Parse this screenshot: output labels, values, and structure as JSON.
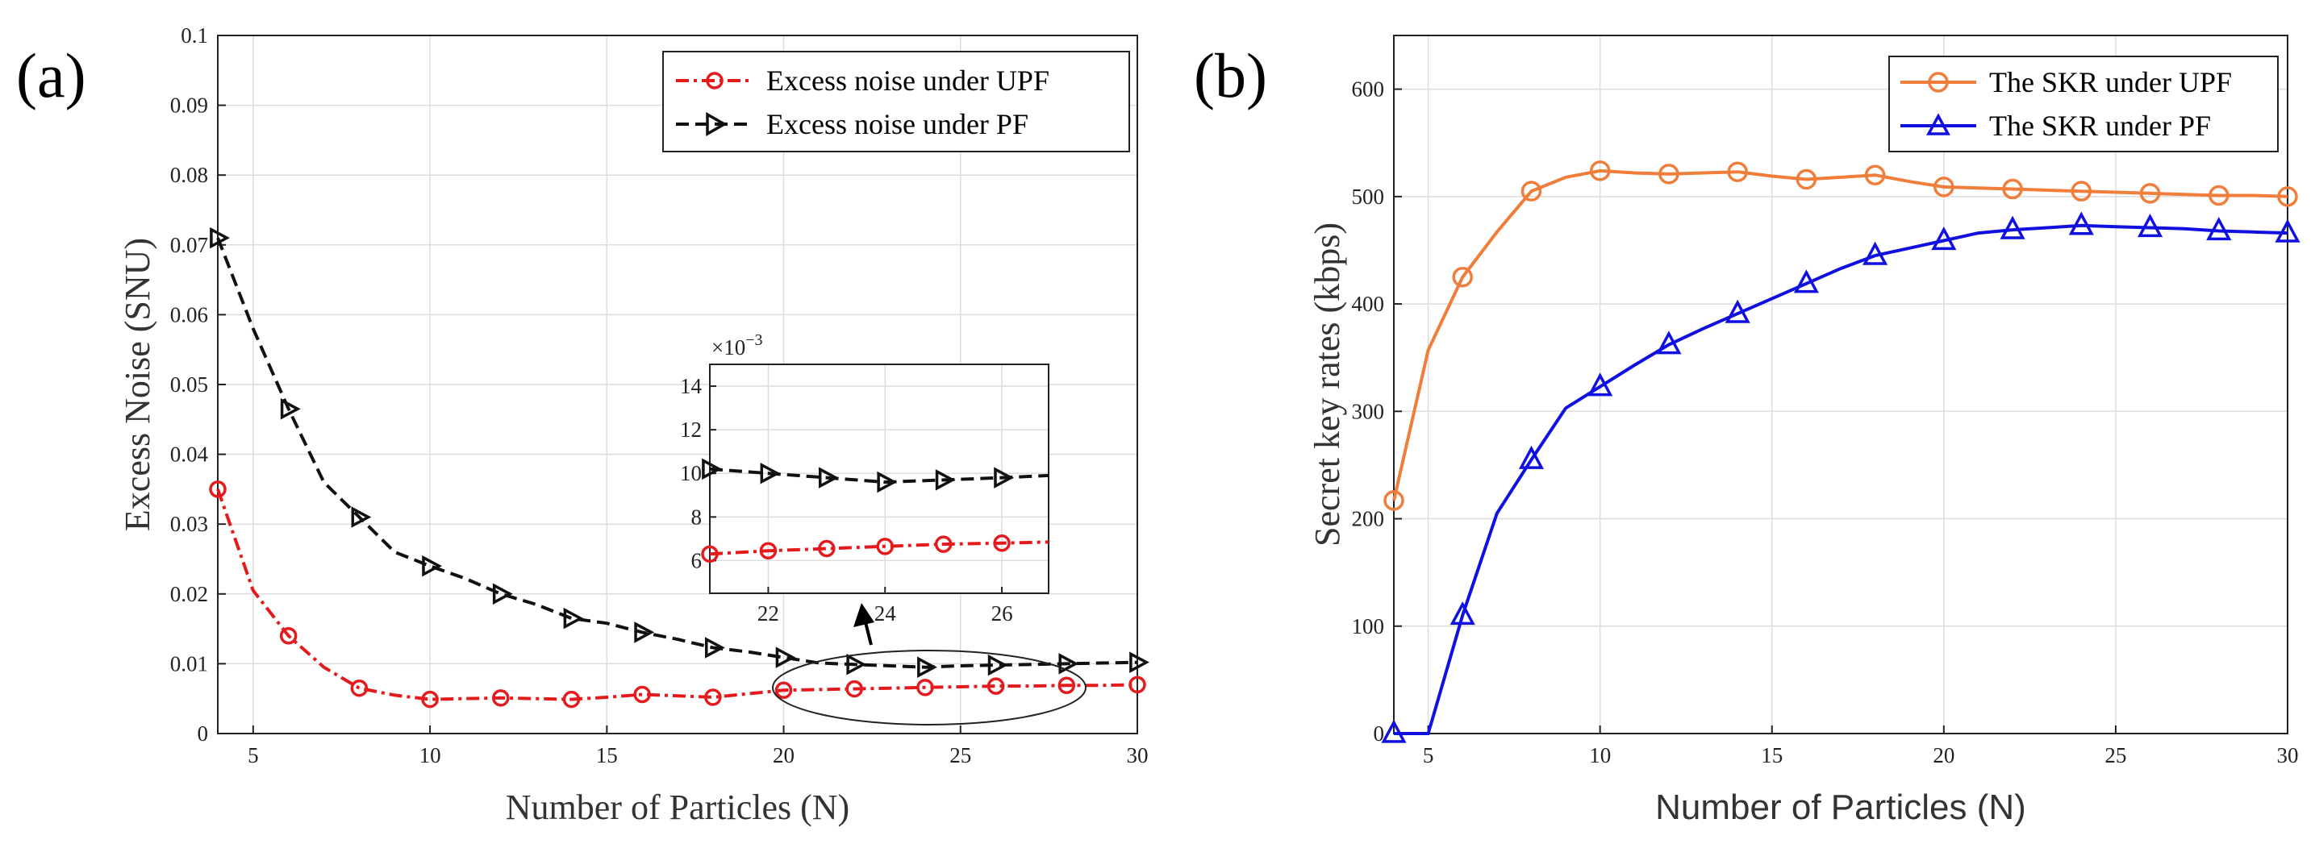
{
  "chart_data": [
    {
      "panel_label": "(a)",
      "type": "line",
      "xlabel": "Number of Particles (N)",
      "ylabel": "Excess Noise (SNU)",
      "xlim": [
        4,
        30
      ],
      "ylim": [
        0,
        0.1
      ],
      "xticks": [
        5,
        10,
        15,
        20,
        25,
        30
      ],
      "yticks": [
        0,
        0.01,
        0.02,
        0.03,
        0.04,
        0.05,
        0.06,
        0.07,
        0.08,
        0.09,
        0.1
      ],
      "ytick_labels": [
        "0",
        "0.01",
        "0.02",
        "0.03",
        "0.04",
        "0.05",
        "0.06",
        "0.07",
        "0.08",
        "0.09",
        "0.1"
      ],
      "grid": true,
      "legend_position": "top-right",
      "series": [
        {
          "name": "Excess noise under UPF",
          "color": "#e41a1c",
          "marker": "circle",
          "line_style": "dash-dot",
          "x": [
            4,
            5,
            6,
            7,
            8,
            9,
            10,
            11,
            12,
            13,
            14,
            15,
            16,
            17,
            18,
            19,
            20,
            21,
            22,
            23,
            24,
            25,
            26,
            27,
            28,
            29,
            30
          ],
          "y": [
            0.035,
            0.0205,
            0.014,
            0.0095,
            0.0065,
            0.0055,
            0.0049,
            0.005,
            0.0051,
            0.005,
            0.0049,
            0.0052,
            0.0056,
            0.0054,
            0.0052,
            0.0057,
            0.0062,
            0.0063,
            0.0064,
            0.0065,
            0.0066,
            0.0067,
            0.0068,
            0.0068,
            0.0069,
            0.0069,
            0.007
          ],
          "marker_x": [
            4,
            6,
            8,
            10,
            12,
            14,
            16,
            18,
            20,
            22,
            24,
            26,
            28,
            30
          ]
        },
        {
          "name": "Excess noise under PF",
          "color": "#111111",
          "marker": "triangle-right",
          "line_style": "dashed",
          "x": [
            4,
            5,
            6,
            7,
            8,
            9,
            10,
            11,
            12,
            13,
            14,
            15,
            16,
            17,
            18,
            19,
            20,
            21,
            22,
            23,
            24,
            25,
            26,
            27,
            28,
            29,
            30
          ],
          "y": [
            0.071,
            0.058,
            0.0465,
            0.036,
            0.031,
            0.026,
            0.024,
            0.0222,
            0.02,
            0.0185,
            0.0165,
            0.0158,
            0.0145,
            0.0135,
            0.0123,
            0.0117,
            0.0109,
            0.0101,
            0.0099,
            0.0097,
            0.0095,
            0.0097,
            0.0098,
            0.0099,
            0.01,
            0.0101,
            0.0102
          ],
          "marker_x": [
            4,
            6,
            8,
            10,
            12,
            14,
            16,
            18,
            20,
            22,
            24,
            26,
            28,
            30
          ]
        }
      ],
      "inset": {
        "exponent_label": "×10",
        "exponent_power": "−3",
        "xlim": [
          21,
          26.8
        ],
        "ylim": [
          4.5,
          15
        ],
        "xticks": [
          22,
          24,
          26
        ],
        "yticks": [
          6,
          8,
          10,
          12,
          14
        ],
        "series": [
          {
            "name": "Excess noise under UPF",
            "x": [
              21,
              22,
              23,
              24,
              25,
              26,
              26.8
            ],
            "y": [
              6.3,
              6.45,
              6.55,
              6.65,
              6.75,
              6.8,
              6.85
            ],
            "marker_x": [
              21,
              22,
              23,
              24,
              25,
              26
            ]
          },
          {
            "name": "Excess noise under PF",
            "x": [
              21,
              22,
              23,
              24,
              25,
              26,
              26.8
            ],
            "y": [
              10.2,
              10.0,
              9.8,
              9.6,
              9.7,
              9.8,
              9.9
            ],
            "marker_x": [
              21,
              22,
              23,
              24,
              25,
              26
            ]
          }
        ]
      }
    },
    {
      "panel_label": "(b)",
      "type": "line",
      "xlabel": "Number of Particles (N)",
      "ylabel": "Secret key rates (kbps)",
      "xlim": [
        4,
        30
      ],
      "ylim": [
        0,
        650
      ],
      "xticks": [
        5,
        10,
        15,
        20,
        25,
        30
      ],
      "yticks": [
        0,
        100,
        200,
        300,
        400,
        500,
        600
      ],
      "grid": true,
      "legend_position": "top-right",
      "series": [
        {
          "name": "The SKR under UPF",
          "color": "#f07d3a",
          "marker": "circle",
          "line_style": "solid",
          "x": [
            4,
            5,
            6,
            7,
            8,
            9,
            10,
            11,
            12,
            13,
            14,
            15,
            16,
            17,
            18,
            19,
            20,
            21,
            22,
            23,
            24,
            25,
            26,
            27,
            28,
            29,
            30
          ],
          "y": [
            217,
            357,
            425,
            467,
            505,
            518,
            524,
            522,
            521,
            522,
            523,
            519,
            516,
            518,
            520,
            514,
            509,
            508,
            507,
            506,
            505,
            504,
            503,
            502,
            501,
            501,
            500
          ],
          "marker_x": [
            4,
            6,
            8,
            10,
            12,
            14,
            16,
            18,
            20,
            22,
            24,
            26,
            28,
            30
          ]
        },
        {
          "name": "The SKR under PF",
          "color": "#1010e0",
          "marker": "triangle-up",
          "line_style": "solid",
          "x": [
            4,
            5,
            6,
            7,
            8,
            9,
            10,
            11,
            12,
            13,
            14,
            15,
            16,
            17,
            18,
            19,
            20,
            21,
            22,
            23,
            24,
            25,
            26,
            27,
            28,
            29,
            30
          ],
          "y": [
            0,
            0,
            110,
            205,
            255,
            303,
            323,
            343,
            362,
            377,
            391,
            405,
            419,
            433,
            445,
            452,
            459,
            466,
            469,
            471,
            473,
            472,
            471,
            470,
            468,
            467,
            466
          ],
          "marker_x": [
            4,
            6,
            8,
            10,
            12,
            14,
            16,
            18,
            20,
            22,
            24,
            26,
            28,
            30
          ]
        }
      ]
    }
  ]
}
